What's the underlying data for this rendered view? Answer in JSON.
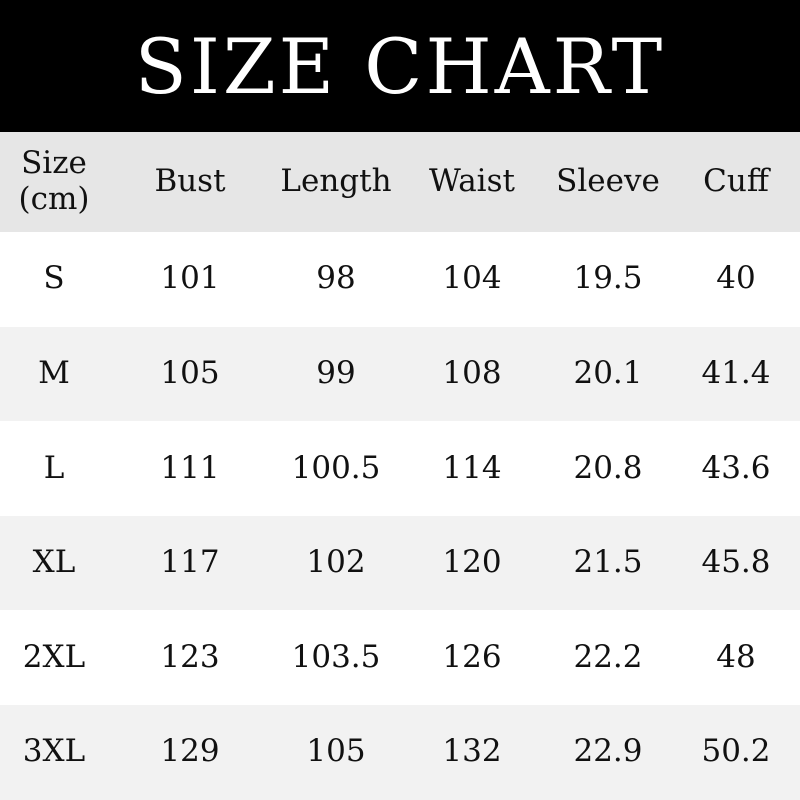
{
  "title": "SIZE CHART",
  "headers": [
    "Size\n(cm)",
    "Bust",
    "Length",
    "Waist",
    "Sleeve",
    "Cuff"
  ],
  "rows": [
    [
      "S",
      "101",
      "98",
      "104",
      "19.5",
      "40"
    ],
    [
      "M",
      "105",
      "99",
      "108",
      "20.1",
      "41.4"
    ],
    [
      "L",
      "111",
      "100.5",
      "114",
      "20.8",
      "43.6"
    ],
    [
      "XL",
      "117",
      "102",
      "120",
      "21.5",
      "45.8"
    ],
    [
      "2XL",
      "123",
      "103.5",
      "126",
      "22.2",
      "48"
    ],
    [
      "3XL",
      "129",
      "105",
      "132",
      "22.9",
      "50.2"
    ]
  ]
}
